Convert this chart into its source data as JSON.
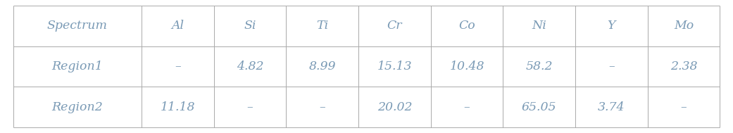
{
  "columns": [
    "Spectrum",
    "Al",
    "Si",
    "Ti",
    "Cr",
    "Co",
    "Ni",
    "Y",
    "Mo"
  ],
  "rows": [
    [
      "Region1",
      "–",
      "4.82",
      "8.99",
      "15.13",
      "10.48",
      "58.2",
      "–",
      "2.38"
    ],
    [
      "Region2",
      "11.18",
      "–",
      "–",
      "20.02",
      "–",
      "65.05",
      "3.74",
      "–"
    ]
  ],
  "background_color": "#ffffff",
  "line_color": "#aaaaaa",
  "text_color": "#7a9ab5",
  "font_size": 12.5,
  "col_widths": [
    1.6,
    0.9,
    0.9,
    0.9,
    0.9,
    0.9,
    0.9,
    0.9,
    0.9
  ]
}
